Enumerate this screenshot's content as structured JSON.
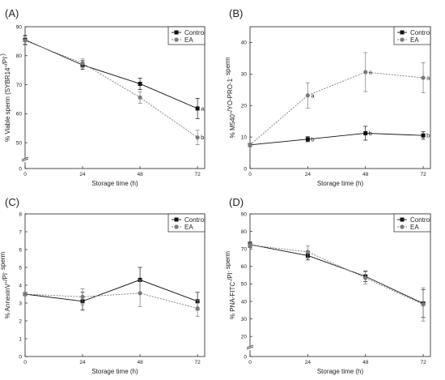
{
  "chart_data": [
    {
      "panel_label": "(A)",
      "type": "line",
      "x": [
        0,
        24,
        48,
        72
      ],
      "xlim": [
        0,
        75
      ],
      "xticks": [
        "0",
        "24",
        "48",
        "72"
      ],
      "xlabel": "Storage time (h)",
      "ylabel": "% Viable sperm (SYBR14+/PI-)",
      "ylim": [
        0,
        90
      ],
      "ybreak": [
        4,
        45
      ],
      "yticks": [
        "0",
        "50",
        "60",
        "70",
        "80",
        "90"
      ],
      "ytick_values": [
        0,
        50,
        60,
        70,
        80,
        90
      ],
      "legend": "top-right",
      "series": [
        {
          "name": "Control",
          "values": [
            85.5,
            76.8,
            70.3,
            61.8
          ],
          "errors": [
            1.5,
            1.5,
            2.0,
            3.5
          ],
          "color": "#111111",
          "marker": "square"
        },
        {
          "name": "EA",
          "values": [
            85.2,
            77.4,
            65.6,
            51.8
          ],
          "errors": [
            1.5,
            1.5,
            2.0,
            2.5
          ],
          "color": "#7a7a7a",
          "marker": "circle"
        }
      ],
      "annotations": [
        {
          "x": 72,
          "y": 61.8,
          "text": "a"
        },
        {
          "x": 72,
          "y": 51.8,
          "text": "b"
        }
      ]
    },
    {
      "panel_label": "(B)",
      "type": "line",
      "x": [
        0,
        24,
        48,
        72
      ],
      "xlim": [
        0,
        75
      ],
      "xticks": [
        "0",
        "24",
        "48",
        "72"
      ],
      "xlabel": "Storage time (h)",
      "ylabel": "% M540+/YO-PRO-1- sperm",
      "ylim": [
        0,
        45
      ],
      "yticks": [
        "0",
        "10",
        "20",
        "30",
        "40"
      ],
      "ytick_values": [
        0,
        10,
        20,
        30,
        40
      ],
      "legend": "top-right",
      "series": [
        {
          "name": "Control",
          "values": [
            7.5,
            9.3,
            11.2,
            10.5
          ],
          "errors": [
            0.5,
            0.8,
            2.2,
            1.2
          ],
          "color": "#111111",
          "marker": "square"
        },
        {
          "name": "EA",
          "values": [
            7.5,
            23.2,
            30.6,
            28.8
          ],
          "errors": [
            0.5,
            4.0,
            6.2,
            4.8
          ],
          "color": "#7a7a7a",
          "marker": "circle"
        }
      ],
      "annotations": [
        {
          "x": 24,
          "y": 9.3,
          "text": "b"
        },
        {
          "x": 48,
          "y": 11.2,
          "text": "b"
        },
        {
          "x": 72,
          "y": 10.5,
          "text": "b"
        },
        {
          "x": 24,
          "y": 23.2,
          "text": "a"
        },
        {
          "x": 48,
          "y": 30.6,
          "text": "a"
        },
        {
          "x": 72,
          "y": 28.8,
          "text": "a"
        }
      ]
    },
    {
      "panel_label": "(C)",
      "type": "line",
      "x": [
        0,
        24,
        48,
        72
      ],
      "xlim": [
        0,
        75
      ],
      "xticks": [
        "0",
        "24",
        "48",
        "72"
      ],
      "xlabel": "Storage time (h)",
      "ylabel": "% AnnexinV+/PI- sperm",
      "ylim": [
        0,
        8
      ],
      "yticks": [
        "0",
        "1",
        "2",
        "3",
        "4",
        "5",
        "6",
        "7",
        "8"
      ],
      "ytick_values": [
        0,
        1,
        2,
        3,
        4,
        5,
        6,
        7,
        8
      ],
      "legend": "top-right",
      "series": [
        {
          "name": "Control",
          "values": [
            3.5,
            3.1,
            4.3,
            3.1
          ],
          "errors": [
            0.1,
            0.5,
            0.7,
            0.5
          ],
          "color": "#111111",
          "marker": "square"
        },
        {
          "name": "EA",
          "values": [
            3.5,
            3.35,
            3.55,
            2.7
          ],
          "errors": [
            0.1,
            0.45,
            0.75,
            0.45
          ],
          "color": "#7a7a7a",
          "marker": "circle"
        }
      ],
      "annotations": []
    },
    {
      "panel_label": "(D)",
      "type": "line",
      "x": [
        0,
        24,
        48,
        72
      ],
      "xlim": [
        0,
        75
      ],
      "xticks": [
        "0",
        "24",
        "48",
        "72"
      ],
      "xlabel": "Storage time (h)",
      "ylabel": "% PNA-FITC-/PI- sperm",
      "ylim": [
        0,
        90
      ],
      "ybreak": [
        4,
        15
      ],
      "yticks": [
        "0",
        "20",
        "30",
        "40",
        "50",
        "60",
        "70",
        "80",
        "90"
      ],
      "ytick_values": [
        0,
        20,
        30,
        40,
        50,
        60,
        70,
        80,
        90
      ],
      "legend": "top-right",
      "series": [
        {
          "name": "Control",
          "values": [
            72.5,
            66.2,
            54.3,
            38.8
          ],
          "errors": [
            1.5,
            2.5,
            3.0,
            8.0
          ],
          "color": "#111111",
          "marker": "square"
        },
        {
          "name": "EA",
          "values": [
            72.2,
            68.3,
            53.4,
            38.3
          ],
          "errors": [
            1.5,
            3.5,
            3.5,
            9.5
          ],
          "color": "#7a7a7a",
          "marker": "circle"
        }
      ],
      "annotations": []
    }
  ]
}
